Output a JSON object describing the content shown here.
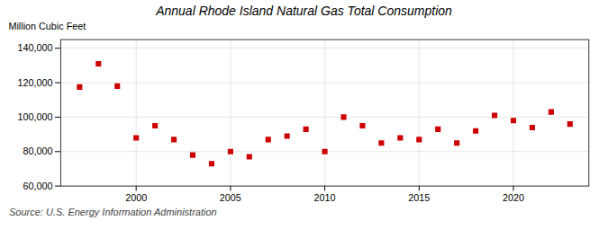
{
  "chart_data": {
    "type": "scatter",
    "title": "Annual Rhode Island Natural Gas Total Consumption",
    "ylabel": "Million Cubic Feet",
    "caption": "Source: U.S. Energy Information Administration",
    "x": [
      1997,
      1998,
      1999,
      2000,
      2001,
      2002,
      2003,
      2004,
      2005,
      2006,
      2007,
      2008,
      2009,
      2010,
      2011,
      2012,
      2013,
      2014,
      2015,
      2016,
      2017,
      2018,
      2019,
      2020,
      2021,
      2022,
      2023
    ],
    "values": [
      117500,
      131000,
      118000,
      88000,
      95000,
      87000,
      78000,
      73000,
      80000,
      77000,
      87000,
      89000,
      93000,
      80000,
      100000,
      95000,
      85000,
      88000,
      87000,
      93000,
      85000,
      92000,
      101000,
      98000,
      94000,
      103000,
      96000
    ],
    "color": "#cc0000",
    "marker": "square",
    "xlim": [
      1996,
      2024
    ],
    "xticks": [
      2000,
      2005,
      2010,
      2015,
      2020
    ],
    "ylim": [
      60000,
      145000
    ],
    "yticks": [
      {
        "value": 60000,
        "label": "60,000"
      },
      {
        "value": 80000,
        "label": "80,000"
      },
      {
        "value": 100000,
        "label": "100,000"
      },
      {
        "value": 120000,
        "label": "120,000"
      },
      {
        "value": 140000,
        "label": "140,000"
      }
    ],
    "grid": true
  }
}
